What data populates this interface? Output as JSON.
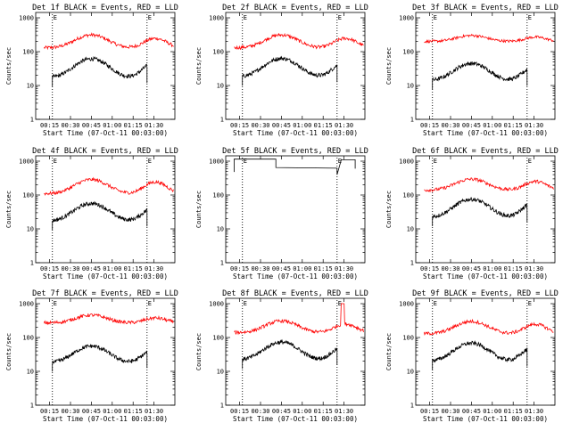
{
  "chart_data": [
    {
      "type": "line",
      "title": "Det 1f BLACK = Events, RED = LLD",
      "xlabel": "Start Time (07-Oct-11 00:03:00)",
      "ylabel": "Counts/sec",
      "yscale": "log",
      "ylim": [
        1,
        1000
      ],
      "x_ticks": [
        "00:15",
        "00:30",
        "00:45",
        "01:00",
        "01:15",
        "01:30"
      ],
      "y_ticks": [
        "1",
        "10",
        "100",
        "1000"
      ],
      "markers": [
        "E",
        "E"
      ],
      "series": [
        {
          "color": "#ff0000",
          "start": 0.06,
          "end": 0.99,
          "base": 130,
          "amp": 2.4,
          "secondary": 1.9,
          "noise": 0.05
        },
        {
          "color": "#000000",
          "start": 0.12,
          "end": 0.8,
          "base": 17,
          "amp": 3.6,
          "secondary": 2.8,
          "noise": 0.06
        }
      ]
    },
    {
      "type": "line",
      "title": "Det 2f BLACK = Events, RED = LLD",
      "xlabel": "Start Time (07-Oct-11 00:03:00)",
      "ylabel": "Counts/sec",
      "yscale": "log",
      "ylim": [
        1,
        1000
      ],
      "x_ticks": [
        "00:15",
        "00:30",
        "00:45",
        "01:00",
        "01:15",
        "01:30"
      ],
      "y_ticks": [
        "1",
        "10",
        "100",
        "1000"
      ],
      "markers": [
        "E",
        "E"
      ],
      "series": [
        {
          "color": "#ff0000",
          "start": 0.06,
          "end": 0.99,
          "base": 130,
          "amp": 2.4,
          "secondary": 1.9,
          "noise": 0.05
        },
        {
          "color": "#000000",
          "start": 0.12,
          "end": 0.8,
          "base": 18,
          "amp": 3.5,
          "secondary": 2.7,
          "noise": 0.06
        }
      ]
    },
    {
      "type": "line",
      "title": "Det 3f BLACK = Events, RED = LLD",
      "xlabel": "Start Time (07-Oct-11 00:03:00)",
      "ylabel": "Counts/sec",
      "yscale": "log",
      "ylim": [
        1,
        1000
      ],
      "x_ticks": [
        "00:15",
        "00:30",
        "00:45",
        "01:00",
        "01:15",
        "01:30"
      ],
      "y_ticks": [
        "1",
        "10",
        "100",
        "1000"
      ],
      "markers": [
        "E",
        "E"
      ],
      "series": [
        {
          "color": "#ff0000",
          "start": 0.06,
          "end": 0.99,
          "base": 200,
          "amp": 1.5,
          "secondary": 1.35,
          "noise": 0.04
        },
        {
          "color": "#000000",
          "start": 0.12,
          "end": 0.8,
          "base": 14,
          "amp": 3.2,
          "secondary": 2.6,
          "noise": 0.06
        }
      ]
    },
    {
      "type": "line",
      "title": "Det 4f BLACK = Events, RED = LLD",
      "xlabel": "Start Time (07-Oct-11 00:03:00)",
      "ylabel": "Counts/sec",
      "yscale": "log",
      "ylim": [
        1,
        1000
      ],
      "x_ticks": [
        "00:15",
        "00:30",
        "00:45",
        "01:00",
        "01:15",
        "01:30"
      ],
      "y_ticks": [
        "1",
        "10",
        "100",
        "1000"
      ],
      "markers": [
        "E",
        "E"
      ],
      "series": [
        {
          "color": "#ff0000",
          "start": 0.06,
          "end": 0.99,
          "base": 110,
          "amp": 2.6,
          "secondary": 2.2,
          "noise": 0.05
        },
        {
          "color": "#000000",
          "start": 0.12,
          "end": 0.8,
          "base": 17,
          "amp": 3.3,
          "secondary": 2.6,
          "noise": 0.06
        }
      ]
    },
    {
      "type": "line",
      "title": "Det 5f BLACK = Events, RED = LLD",
      "xlabel": "Start Time (07-Oct-11 00:03:00)",
      "ylabel": "Counts/sec",
      "yscale": "log",
      "ylim": [
        1,
        1000
      ],
      "x_ticks": [
        "00:15",
        "00:30",
        "00:45",
        "01:00",
        "01:15",
        "01:30"
      ],
      "y_ticks": [
        "1",
        "10",
        "100",
        "1000"
      ],
      "markers": [
        "E",
        "E"
      ],
      "series": [
        {
          "color": "#000000",
          "shape": "step",
          "start": 0.06,
          "end": 0.99,
          "base": 1100,
          "noise": 0.0
        }
      ]
    },
    {
      "type": "line",
      "title": "Det 6f BLACK = Events, RED = LLD",
      "xlabel": "Start Time (07-Oct-11 00:03:00)",
      "ylabel": "Counts/sec",
      "yscale": "log",
      "ylim": [
        1,
        1000
      ],
      "x_ticks": [
        "00:15",
        "00:30",
        "00:45",
        "01:00",
        "01:15",
        "01:30"
      ],
      "y_ticks": [
        "1",
        "10",
        "100",
        "1000"
      ],
      "markers": [
        "E",
        "E"
      ],
      "series": [
        {
          "color": "#ff0000",
          "start": 0.06,
          "end": 0.99,
          "base": 140,
          "amp": 2.1,
          "secondary": 1.8,
          "noise": 0.05
        },
        {
          "color": "#000000",
          "start": 0.12,
          "end": 0.8,
          "base": 22,
          "amp": 3.4,
          "secondary": 2.9,
          "noise": 0.06
        }
      ]
    },
    {
      "type": "line",
      "title": "Det 7f BLACK = Events, RED = LLD",
      "xlabel": "Start Time (07-Oct-11 00:03:00)",
      "ylabel": "Counts/sec",
      "yscale": "log",
      "ylim": [
        1,
        1000
      ],
      "x_ticks": [
        "00:15",
        "00:30",
        "00:45",
        "01:00",
        "01:15",
        "01:30"
      ],
      "y_ticks": [
        "1",
        "10",
        "100",
        "1000"
      ],
      "markers": [
        "E",
        "E"
      ],
      "series": [
        {
          "color": "#ff0000",
          "start": 0.06,
          "end": 0.99,
          "base": 270,
          "amp": 1.7,
          "secondary": 1.4,
          "noise": 0.05
        },
        {
          "color": "#000000",
          "start": 0.12,
          "end": 0.8,
          "base": 18,
          "amp": 3.1,
          "secondary": 2.5,
          "noise": 0.06
        }
      ]
    },
    {
      "type": "line",
      "title": "Det 8f BLACK = Events, RED = LLD",
      "xlabel": "Start Time (07-Oct-11 00:03:00)",
      "ylabel": "Counts/sec",
      "yscale": "log",
      "ylim": [
        1,
        1000
      ],
      "x_ticks": [
        "00:15",
        "00:30",
        "00:45",
        "01:00",
        "01:15",
        "01:30"
      ],
      "y_ticks": [
        "1",
        "10",
        "100",
        "1000"
      ],
      "markers": [
        "E",
        "E"
      ],
      "series": [
        {
          "color": "#ff0000",
          "start": 0.06,
          "end": 0.99,
          "base": 140,
          "amp": 2.2,
          "secondary": 1.8,
          "noise": 0.05,
          "spike": 0.84
        },
        {
          "color": "#000000",
          "start": 0.12,
          "end": 0.8,
          "base": 22,
          "amp": 3.3,
          "secondary": 2.6,
          "noise": 0.06
        }
      ]
    },
    {
      "type": "line",
      "title": "Det 9f BLACK = Events, RED = LLD",
      "xlabel": "Start Time (07-Oct-11 00:03:00)",
      "ylabel": "Counts/sec",
      "yscale": "log",
      "ylim": [
        1,
        1000
      ],
      "x_ticks": [
        "00:15",
        "00:30",
        "00:45",
        "01:00",
        "01:15",
        "01:30"
      ],
      "y_ticks": [
        "1",
        "10",
        "100",
        "1000"
      ],
      "markers": [
        "E",
        "E"
      ],
      "series": [
        {
          "color": "#ff0000",
          "start": 0.06,
          "end": 0.99,
          "base": 130,
          "amp": 2.3,
          "secondary": 1.9,
          "noise": 0.05
        },
        {
          "color": "#000000",
          "start": 0.12,
          "end": 0.8,
          "base": 20,
          "amp": 3.4,
          "secondary": 2.8,
          "noise": 0.06
        }
      ]
    }
  ]
}
